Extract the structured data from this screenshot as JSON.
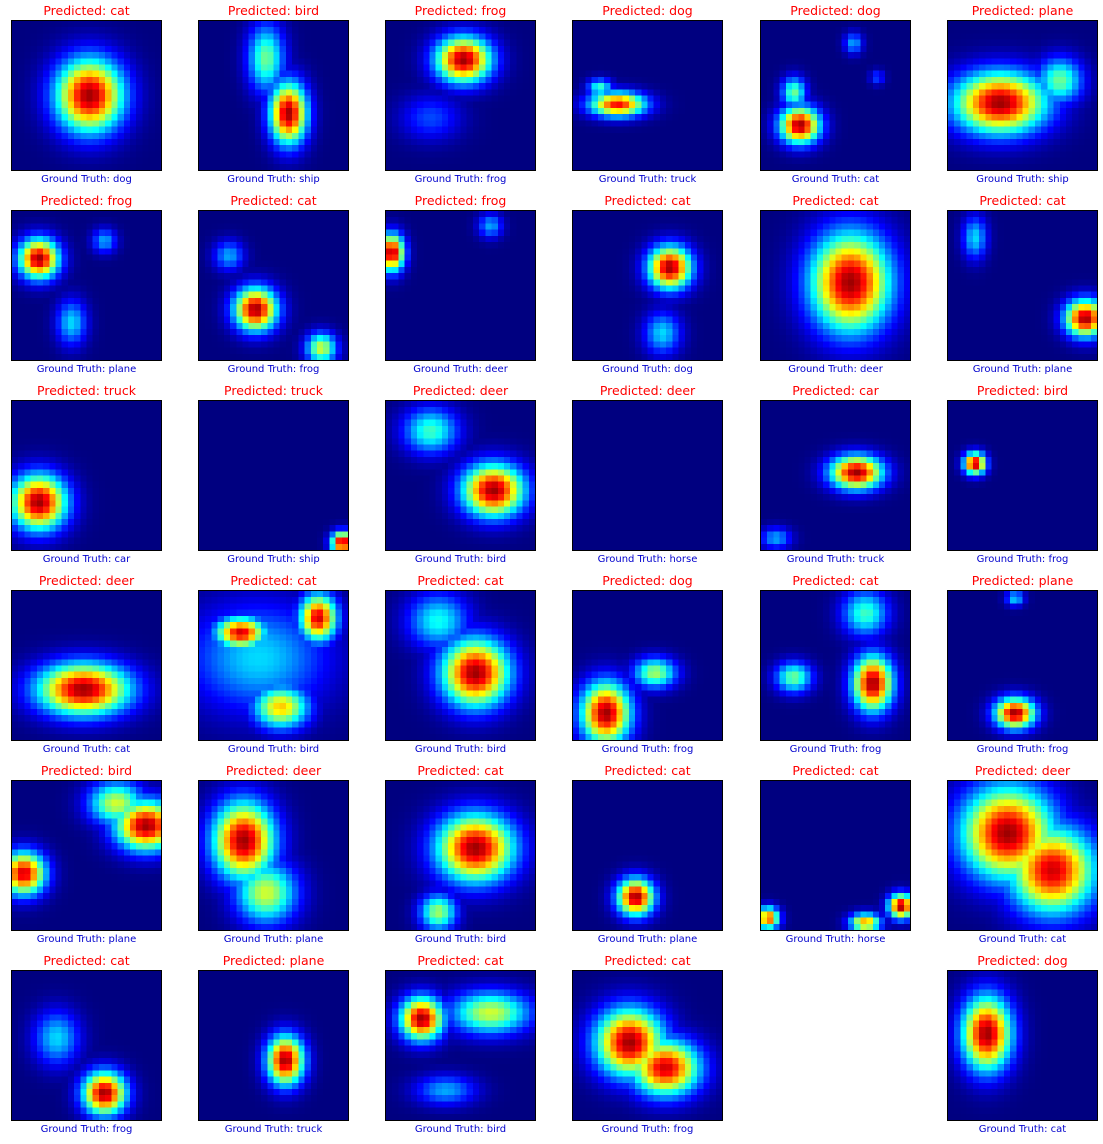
{
  "chart_data": {
    "type": "heatmap",
    "title": "",
    "colormap": "jet",
    "grid": {
      "rows": 6,
      "cols": 6
    },
    "predicted_label_color": "#ff0000",
    "truth_label_color": "#0000cd",
    "panels": [
      {
        "predicted": "Predicted: cat",
        "truth": "Ground Truth: dog",
        "blobs": [
          [
            0.52,
            0.5,
            0.22,
            0.24,
            1.0
          ]
        ]
      },
      {
        "predicted": "Predicted: bird",
        "truth": "Ground Truth: ship",
        "blobs": [
          [
            0.6,
            0.62,
            0.12,
            0.2,
            1.0
          ],
          [
            0.45,
            0.25,
            0.12,
            0.22,
            0.5
          ]
        ]
      },
      {
        "predicted": "Predicted: frog",
        "truth": "Ground Truth: frog",
        "blobs": [
          [
            0.52,
            0.26,
            0.18,
            0.15,
            1.0
          ],
          [
            0.3,
            0.65,
            0.2,
            0.15,
            0.2
          ]
        ]
      },
      {
        "predicted": "Predicted: dog",
        "truth": "Ground Truth: truck",
        "blobs": [
          [
            0.3,
            0.56,
            0.18,
            0.08,
            0.9
          ],
          [
            0.18,
            0.45,
            0.08,
            0.06,
            0.45
          ]
        ]
      },
      {
        "predicted": "Predicted: dog",
        "truth": "Ground Truth: cat",
        "blobs": [
          [
            0.26,
            0.7,
            0.13,
            0.12,
            1.0
          ],
          [
            0.22,
            0.48,
            0.08,
            0.1,
            0.5
          ],
          [
            0.62,
            0.15,
            0.06,
            0.07,
            0.3
          ],
          [
            0.78,
            0.38,
            0.05,
            0.05,
            0.2
          ]
        ]
      },
      {
        "predicted": "Predicted: plane",
        "truth": "Ground Truth: ship",
        "blobs": [
          [
            0.35,
            0.55,
            0.3,
            0.2,
            1.0
          ],
          [
            0.75,
            0.4,
            0.15,
            0.15,
            0.5
          ]
        ]
      },
      {
        "predicted": "Predicted: frog",
        "truth": "Ground Truth: plane",
        "blobs": [
          [
            0.18,
            0.32,
            0.13,
            0.13,
            1.0
          ],
          [
            0.4,
            0.75,
            0.1,
            0.15,
            0.35
          ],
          [
            0.62,
            0.2,
            0.08,
            0.08,
            0.3
          ]
        ]
      },
      {
        "predicted": "Predicted: cat",
        "truth": "Ground Truth: frog",
        "blobs": [
          [
            0.38,
            0.66,
            0.14,
            0.14,
            1.0
          ],
          [
            0.82,
            0.92,
            0.1,
            0.1,
            0.6
          ],
          [
            0.2,
            0.3,
            0.1,
            0.1,
            0.3
          ]
        ]
      },
      {
        "predicted": "Predicted: frog",
        "truth": "Ground Truth: deer",
        "blobs": [
          [
            0.04,
            0.28,
            0.08,
            0.12,
            1.0
          ],
          [
            0.7,
            0.1,
            0.08,
            0.08,
            0.3
          ]
        ]
      },
      {
        "predicted": "Predicted: cat",
        "truth": "Ground Truth: dog",
        "blobs": [
          [
            0.65,
            0.38,
            0.14,
            0.14,
            1.0
          ],
          [
            0.6,
            0.82,
            0.12,
            0.14,
            0.35
          ]
        ]
      },
      {
        "predicted": "Predicted: cat",
        "truth": "Ground Truth: deer",
        "blobs": [
          [
            0.6,
            0.48,
            0.26,
            0.32,
            1.0
          ]
        ]
      },
      {
        "predicted": "Predicted: cat",
        "truth": "Ground Truth: plane",
        "blobs": [
          [
            0.92,
            0.72,
            0.13,
            0.12,
            1.0
          ],
          [
            0.18,
            0.18,
            0.08,
            0.14,
            0.35
          ]
        ]
      },
      {
        "predicted": "Predicted: truck",
        "truth": "Ground Truth: car",
        "blobs": [
          [
            0.18,
            0.68,
            0.18,
            0.18,
            1.0
          ]
        ]
      },
      {
        "predicted": "Predicted: truck",
        "truth": "Ground Truth: ship",
        "blobs": [
          [
            0.96,
            0.95,
            0.07,
            0.07,
            1.0
          ]
        ]
      },
      {
        "predicted": "Predicted: deer",
        "truth": "Ground Truth: bird",
        "blobs": [
          [
            0.72,
            0.6,
            0.2,
            0.17,
            1.0
          ],
          [
            0.3,
            0.2,
            0.18,
            0.15,
            0.45
          ]
        ]
      },
      {
        "predicted": "Predicted: deer",
        "truth": "Ground Truth: horse",
        "blobs": []
      },
      {
        "predicted": "Predicted: car",
        "truth": "Ground Truth: truck",
        "blobs": [
          [
            0.64,
            0.48,
            0.17,
            0.11,
            1.0
          ],
          [
            0.1,
            0.92,
            0.1,
            0.07,
            0.3
          ]
        ]
      },
      {
        "predicted": "Predicted: bird",
        "truth": "Ground Truth: frog",
        "blobs": [
          [
            0.18,
            0.42,
            0.07,
            0.07,
            1.0
          ]
        ]
      },
      {
        "predicted": "Predicted: deer",
        "truth": "Ground Truth: cat",
        "blobs": [
          [
            0.48,
            0.66,
            0.3,
            0.17,
            1.0
          ]
        ]
      },
      {
        "predicted": "Predicted: cat",
        "truth": "Ground Truth: bird",
        "blobs": [
          [
            0.28,
            0.28,
            0.16,
            0.1,
            0.95
          ],
          [
            0.8,
            0.18,
            0.12,
            0.15,
            0.95
          ],
          [
            0.55,
            0.78,
            0.18,
            0.14,
            0.7
          ],
          [
            0.4,
            0.45,
            0.45,
            0.35,
            0.35
          ]
        ]
      },
      {
        "predicted": "Predicted: cat",
        "truth": "Ground Truth: bird",
        "blobs": [
          [
            0.6,
            0.55,
            0.22,
            0.22,
            1.0
          ],
          [
            0.35,
            0.2,
            0.2,
            0.18,
            0.4
          ]
        ]
      },
      {
        "predicted": "Predicted: dog",
        "truth": "Ground Truth: frog",
        "blobs": [
          [
            0.22,
            0.82,
            0.16,
            0.2,
            1.0
          ],
          [
            0.55,
            0.55,
            0.14,
            0.1,
            0.55
          ]
        ]
      },
      {
        "predicted": "Predicted: cat",
        "truth": "Ground Truth: frog",
        "blobs": [
          [
            0.75,
            0.62,
            0.13,
            0.18,
            1.0
          ],
          [
            0.22,
            0.58,
            0.12,
            0.1,
            0.5
          ],
          [
            0.7,
            0.15,
            0.15,
            0.15,
            0.45
          ]
        ]
      },
      {
        "predicted": "Predicted: plane",
        "truth": "Ground Truth: frog",
        "blobs": [
          [
            0.45,
            0.82,
            0.13,
            0.1,
            1.0
          ],
          [
            0.45,
            0.05,
            0.06,
            0.05,
            0.35
          ]
        ]
      },
      {
        "predicted": "Predicted: bird",
        "truth": "Ground Truth: plane",
        "blobs": [
          [
            0.9,
            0.3,
            0.2,
            0.16,
            1.0
          ],
          [
            0.08,
            0.62,
            0.14,
            0.14,
            0.95
          ],
          [
            0.7,
            0.15,
            0.18,
            0.14,
            0.6
          ]
        ]
      },
      {
        "predicted": "Predicted: deer",
        "truth": "Ground Truth: plane",
        "blobs": [
          [
            0.3,
            0.4,
            0.2,
            0.25,
            1.0
          ],
          [
            0.45,
            0.75,
            0.2,
            0.2,
            0.6
          ]
        ]
      },
      {
        "predicted": "Predicted: cat",
        "truth": "Ground Truth: bird",
        "blobs": [
          [
            0.6,
            0.45,
            0.25,
            0.22,
            1.0
          ],
          [
            0.35,
            0.88,
            0.12,
            0.12,
            0.55
          ]
        ]
      },
      {
        "predicted": "Predicted: cat",
        "truth": "Ground Truth: plane",
        "blobs": [
          [
            0.42,
            0.78,
            0.12,
            0.12,
            1.0
          ]
        ]
      },
      {
        "predicted": "Predicted: cat",
        "truth": "Ground Truth: horse",
        "blobs": [
          [
            0.94,
            0.84,
            0.08,
            0.08,
            1.0
          ],
          [
            0.05,
            0.92,
            0.07,
            0.07,
            0.85
          ],
          [
            0.7,
            0.95,
            0.1,
            0.06,
            0.75
          ]
        ]
      },
      {
        "predicted": "Predicted: deer",
        "truth": "Ground Truth: cat",
        "blobs": [
          [
            0.4,
            0.35,
            0.3,
            0.3,
            1.0
          ],
          [
            0.7,
            0.6,
            0.28,
            0.28,
            0.95
          ]
        ]
      },
      {
        "predicted": "Predicted: cat",
        "truth": "Ground Truth: frog",
        "blobs": [
          [
            0.62,
            0.82,
            0.14,
            0.14,
            1.0
          ],
          [
            0.3,
            0.45,
            0.15,
            0.18,
            0.35
          ]
        ]
      },
      {
        "predicted": "Predicted: plane",
        "truth": "Ground Truth: truck",
        "blobs": [
          [
            0.58,
            0.6,
            0.12,
            0.16,
            1.0
          ]
        ]
      },
      {
        "predicted": "Predicted: cat",
        "truth": "Ground Truth: bird",
        "blobs": [
          [
            0.24,
            0.32,
            0.14,
            0.14,
            1.0
          ],
          [
            0.7,
            0.28,
            0.26,
            0.14,
            0.6
          ],
          [
            0.4,
            0.8,
            0.2,
            0.1,
            0.3
          ]
        ]
      },
      {
        "predicted": "Predicted: cat",
        "truth": "Ground Truth: frog",
        "blobs": [
          [
            0.38,
            0.48,
            0.22,
            0.22,
            1.0
          ],
          [
            0.62,
            0.65,
            0.22,
            0.18,
            0.95
          ]
        ]
      },
      null,
      {
        "predicted": "Predicted: dog",
        "truth": "Ground Truth: cat",
        "blobs": [
          [
            0.26,
            0.42,
            0.16,
            0.24,
            1.0
          ]
        ]
      }
    ]
  }
}
